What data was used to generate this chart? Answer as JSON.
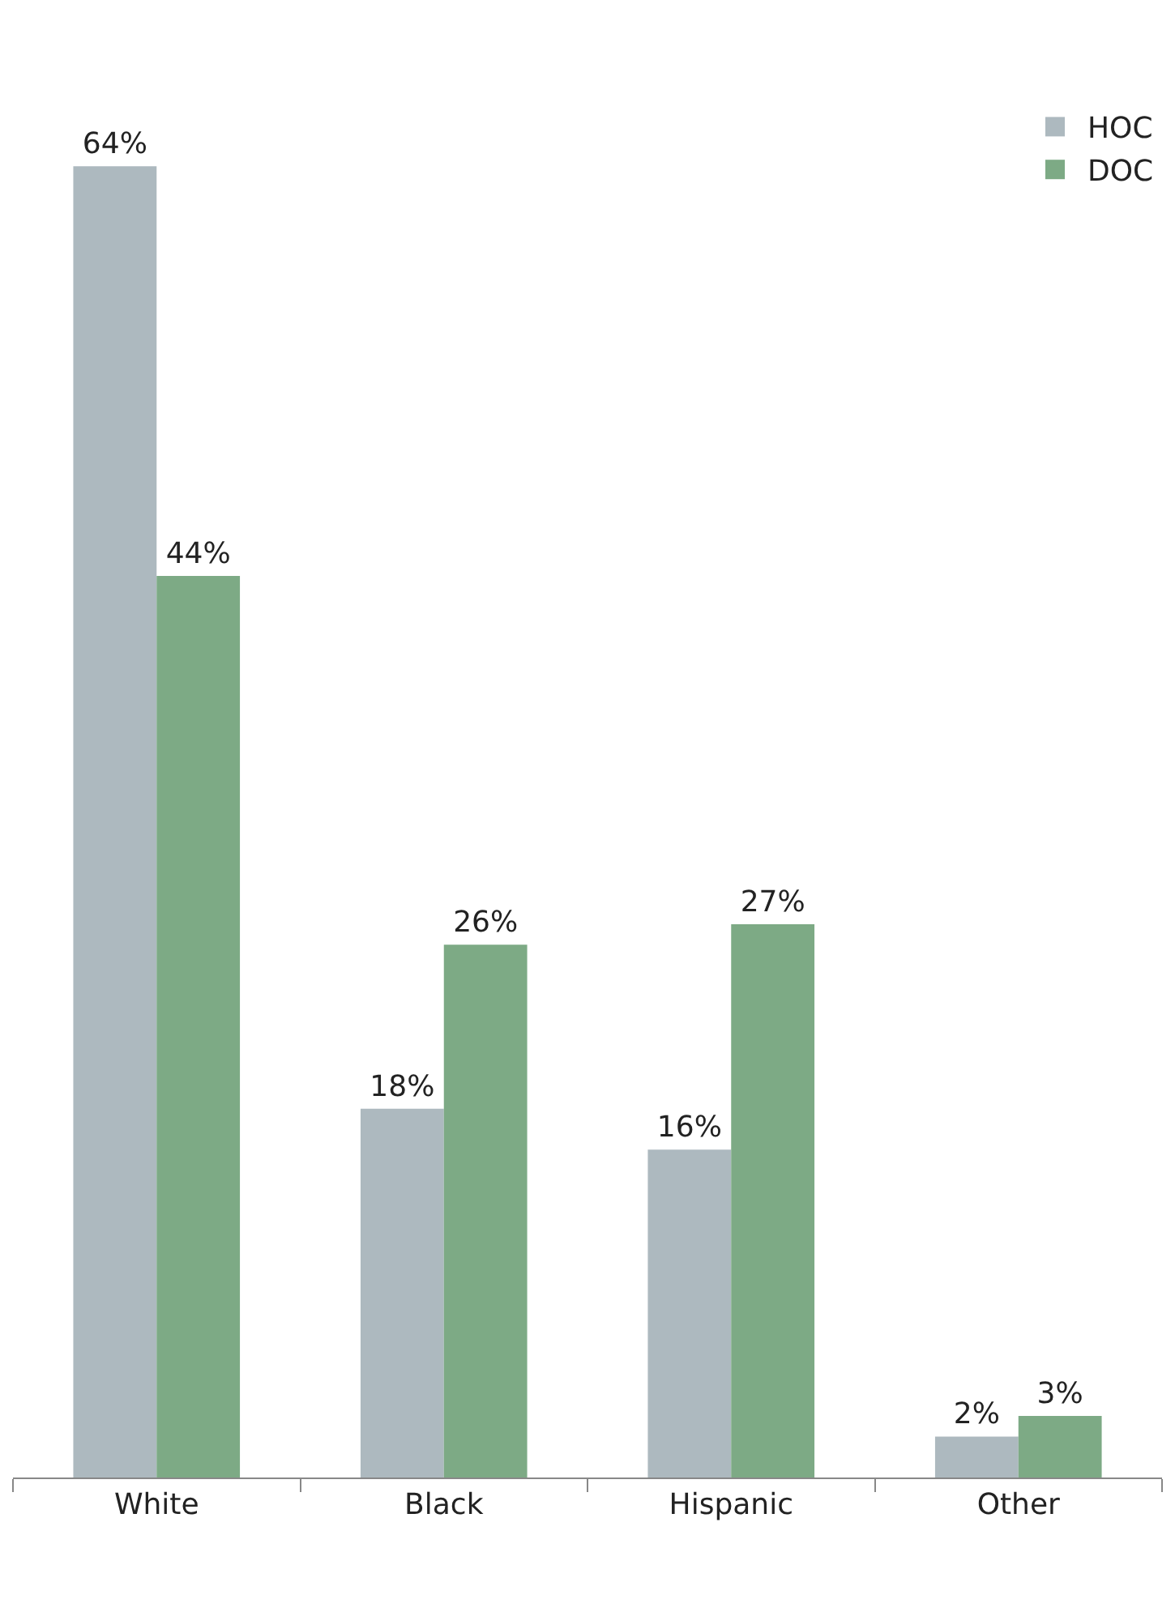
{
  "chart_data": {
    "type": "bar",
    "categories": [
      "White",
      "Black",
      "Hispanic",
      "Other"
    ],
    "series": [
      {
        "name": "HOC",
        "color": "#adb9bf",
        "values": [
          64,
          18,
          16,
          2
        ],
        "value_labels": [
          "64%",
          "18%",
          "16%",
          "2%"
        ]
      },
      {
        "name": "DOC",
        "color": "#7daa85",
        "values": [
          44,
          26,
          27,
          3
        ],
        "value_labels": [
          "44%",
          "26%",
          "27%",
          "3%"
        ]
      }
    ],
    "legend": "top right"
  }
}
